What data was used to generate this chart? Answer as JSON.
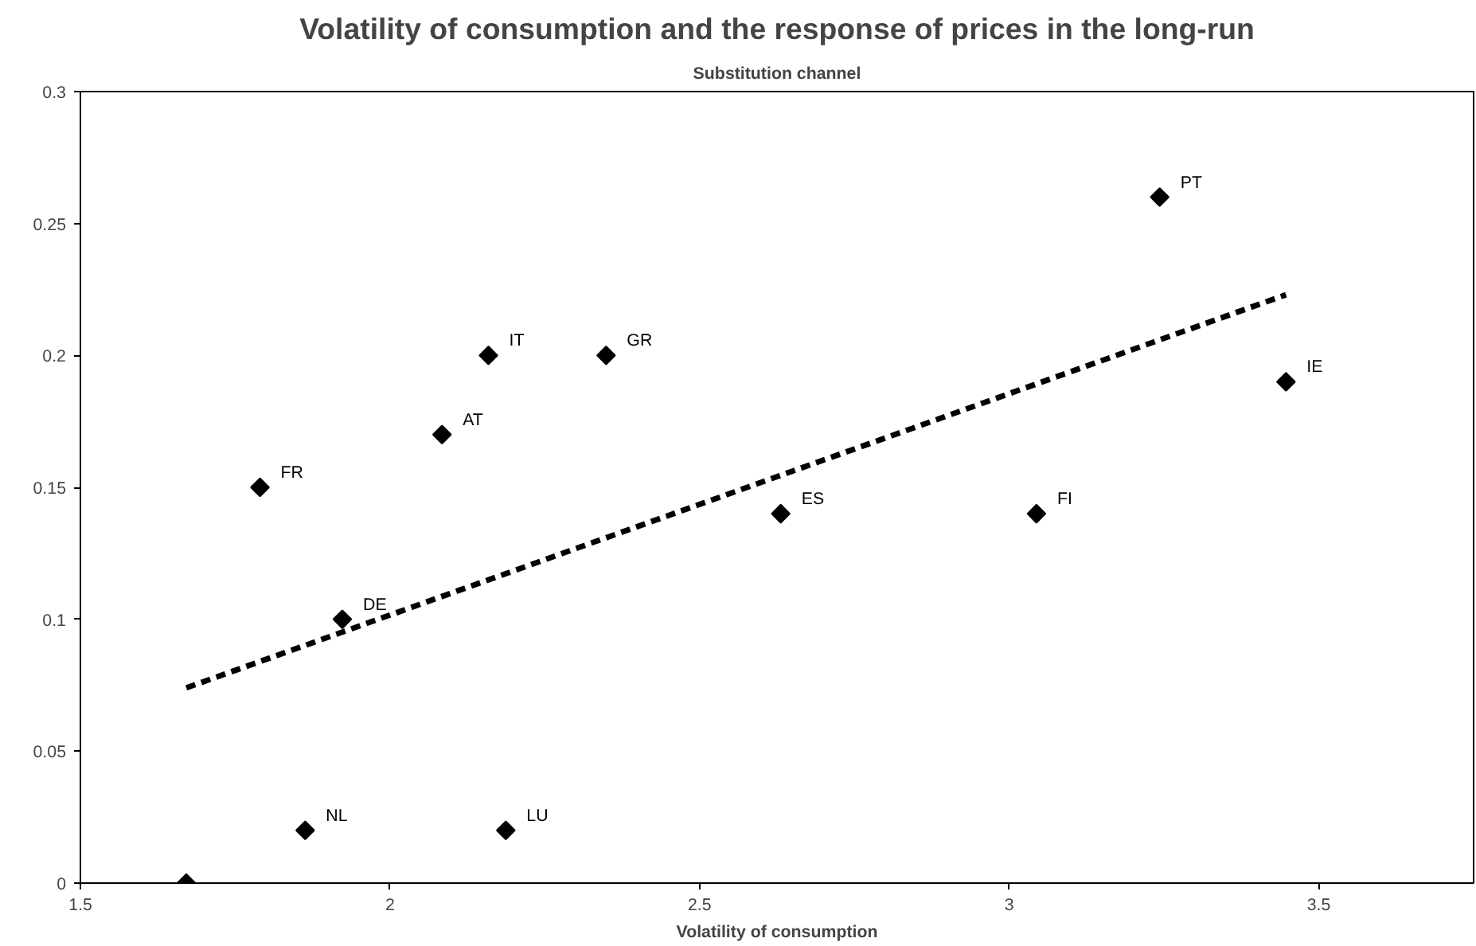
{
  "chart_data": {
    "type": "scatter",
    "title": "Volatility of consumption and the response of prices in the long-run",
    "subtitle": "Substitution channel",
    "xlabel": "Volatility of consumption",
    "xlim": [
      1.5,
      3.75
    ],
    "xticks": [
      1.5,
      2,
      2.5,
      3,
      3.5
    ],
    "ylim": [
      0,
      0.3
    ],
    "yticks": [
      0,
      0.05,
      0.1,
      0.15,
      0.2,
      0.25,
      0.3
    ],
    "grid": false,
    "marker": "diamond",
    "series": [
      {
        "color": "#000000",
        "x": [
          1.671,
          1.79,
          1.863,
          1.923,
          2.084,
          2.159,
          2.187,
          2.349,
          2.631,
          3.044,
          3.243,
          3.447
        ],
        "values": [
          0,
          0.15,
          0.02,
          0.1,
          0.17,
          0.2,
          0.02,
          0.2,
          0.14,
          0.14,
          0.26,
          0.19
        ]
      },
      {
        "type": "line",
        "line_style": "dashed",
        "marker": "none",
        "color": "#000000",
        "x": [
          1.671,
          3.447
        ],
        "values": [
          0.074,
          0.223
        ]
      }
    ],
    "annotations": [
      {
        "text": "FR",
        "x": 1.79,
        "y": 0.15
      },
      {
        "text": "NL",
        "x": 1.863,
        "y": 0.02
      },
      {
        "text": "DE",
        "x": 1.923,
        "y": 0.1
      },
      {
        "text": "AT",
        "x": 2.084,
        "y": 0.17
      },
      {
        "text": "IT",
        "x": 2.159,
        "y": 0.2
      },
      {
        "text": "LU",
        "x": 2.187,
        "y": 0.02
      },
      {
        "text": "GR",
        "x": 2.349,
        "y": 0.2
      },
      {
        "text": "ES",
        "x": 2.631,
        "y": 0.14
      },
      {
        "text": "FI",
        "x": 3.044,
        "y": 0.14
      },
      {
        "text": "PT",
        "x": 3.243,
        "y": 0.26
      },
      {
        "text": "IE",
        "x": 3.447,
        "y": 0.19
      }
    ]
  }
}
